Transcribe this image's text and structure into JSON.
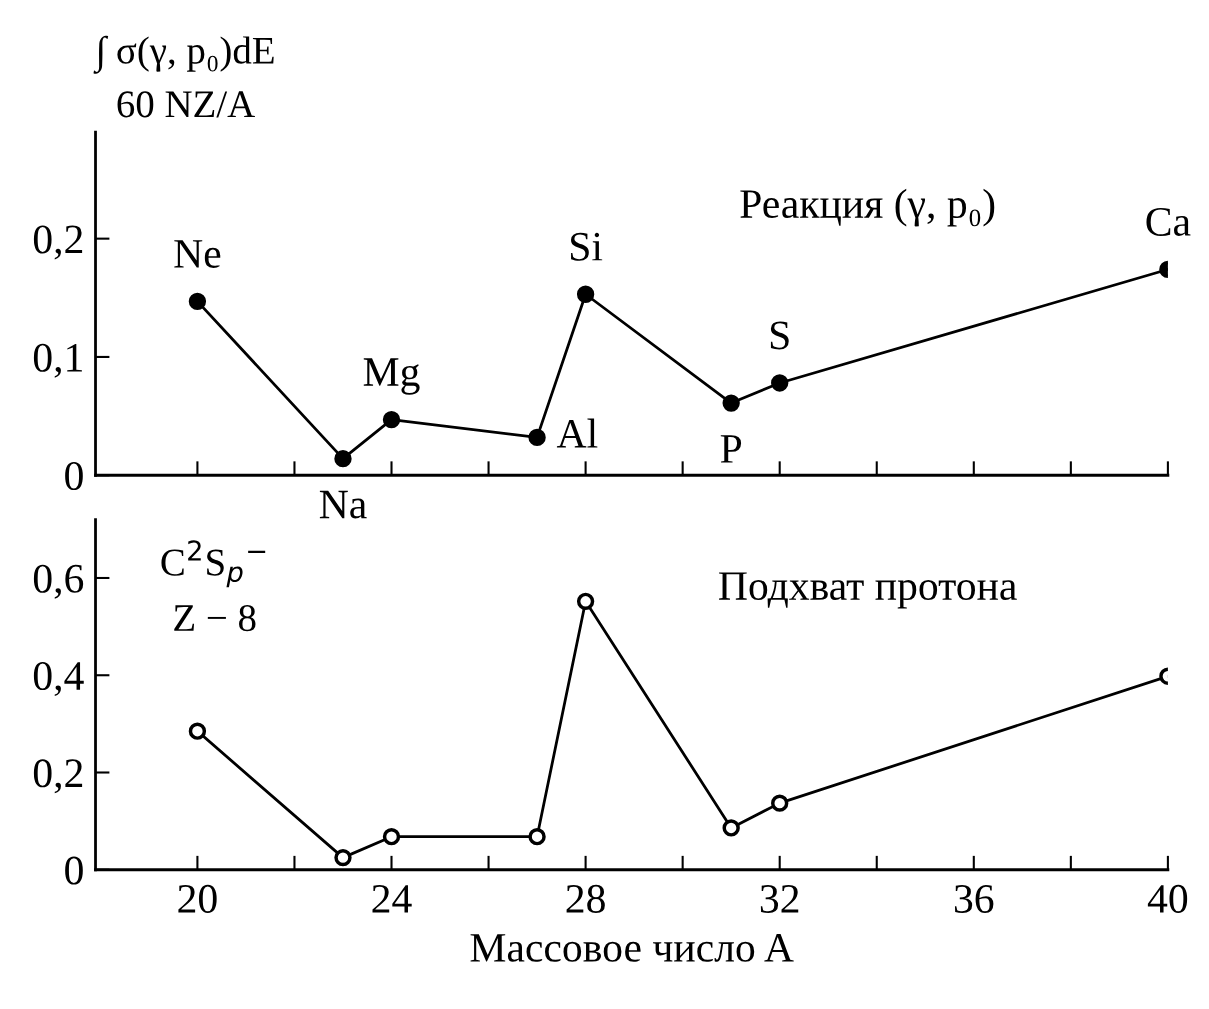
{
  "chart_data": [
    {
      "type": "line",
      "ylabel": "∫ σ(γ, p₀)dE\n60 NZ/A",
      "x": [
        20,
        23,
        24,
        27,
        28,
        31,
        32,
        40
      ],
      "series": [
        {
          "color": "#000000",
          "values": [
            0.147,
            0.014,
            0.047,
            0.032,
            0.153,
            0.061,
            0.078,
            0.174
          ]
        }
      ],
      "xlim": [
        17.9,
        40
      ],
      "xticks": [
        {
          "value": 20,
          "label": null
        },
        {
          "value": 22,
          "label": null
        },
        {
          "value": 24,
          "label": null
        },
        {
          "value": 26,
          "label": null
        },
        {
          "value": 28,
          "label": null
        },
        {
          "value": 30,
          "label": null
        },
        {
          "value": 32,
          "label": null
        },
        {
          "value": 34,
          "label": null
        },
        {
          "value": 36,
          "label": null
        },
        {
          "value": 38,
          "label": null
        },
        {
          "value": 40,
          "label": null
        }
      ],
      "ylim": [
        0,
        0.29
      ],
      "yticks": [
        {
          "value": 0,
          "label": "0"
        },
        {
          "value": 0.1,
          "label": "0,1"
        },
        {
          "value": 0.2,
          "label": "0,2"
        }
      ],
      "tick_labels": "y",
      "marker": "circle",
      "line_style": "solid",
      "grid": false,
      "legend": false,
      "annotations": [
        {
          "text": "Ne",
          "x": 20,
          "y": 0.147
        },
        {
          "text": "Na",
          "x": 23,
          "y": 0.014
        },
        {
          "text": "Mg",
          "x": 24,
          "y": 0.047
        },
        {
          "text": "Al",
          "x": 27,
          "y": 0.032
        },
        {
          "text": "Si",
          "x": 28,
          "y": 0.153
        },
        {
          "text": "P",
          "x": 31,
          "y": 0.061
        },
        {
          "text": "S",
          "x": 32,
          "y": 0.078
        },
        {
          "text": "Ca",
          "x": 40,
          "y": 0.174
        },
        "Реакция (γ, p₀)"
      ]
    },
    {
      "type": "line",
      "ylabel": "C$^{2}$S$_{p}$$^{−}$\nZ − 8",
      "xlabel": "Массовое число A",
      "x": [
        20,
        23,
        24,
        27,
        28,
        31,
        32,
        40
      ],
      "series": [
        {
          "color": "#000000",
          "values": [
            0.285,
            0.025,
            0.068,
            0.068,
            0.552,
            0.086,
            0.137,
            0.398
          ]
        }
      ],
      "xlim": [
        17.9,
        40
      ],
      "xticks": [
        20,
        {
          "value": 22,
          "label": null
        },
        24,
        {
          "value": 26,
          "label": null
        },
        28,
        {
          "value": 30,
          "label": null
        },
        32,
        {
          "value": 34,
          "label": null
        },
        36,
        {
          "value": 38,
          "label": null
        },
        40
      ],
      "ylim": [
        0,
        0.72
      ],
      "yticks": [
        {
          "value": 0,
          "label": "0"
        },
        {
          "value": 0.2,
          "label": "0,2"
        },
        {
          "value": 0.4,
          "label": "0,4"
        },
        {
          "value": 0.6,
          "label": "0,6"
        }
      ],
      "marker": "circle",
      "line_style": "solid",
      "grid": false,
      "legend": false,
      "annotations": [
        "Подхват протона"
      ]
    }
  ]
}
